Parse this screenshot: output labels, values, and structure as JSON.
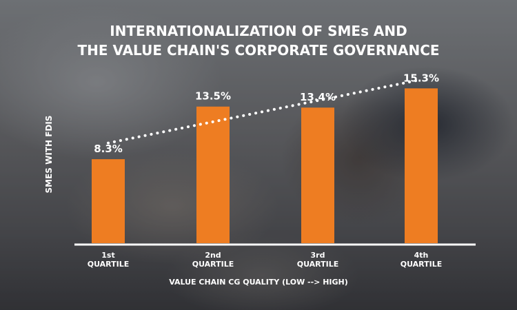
{
  "chart_data": {
    "type": "bar",
    "title_lines": [
      "INTERNATIONALIZATION OF SMEs AND",
      "THE VALUE CHAIN'S CORPORATE GOVERNANCE"
    ],
    "categories": [
      [
        "1st",
        "QUARTILE"
      ],
      [
        "2nd",
        "QUARTILE"
      ],
      [
        "3rd",
        "QUARTILE"
      ],
      [
        "4th",
        "QUARTILE"
      ]
    ],
    "values": [
      8.3,
      13.5,
      13.4,
      15.3
    ],
    "value_labels": [
      "8.3%",
      "13.5%",
      "13.4%",
      "15.3%"
    ],
    "xlabel": "VALUE CHAIN CG QUALITY (LOW --> HIGH)",
    "ylabel": "SMES WITH FDIS",
    "ylim": [
      0,
      16
    ],
    "grid": false,
    "trendline": "dotted",
    "colors": {
      "bar": "#ee7d22",
      "text": "#ffffff",
      "axis": "#ffffff"
    }
  }
}
